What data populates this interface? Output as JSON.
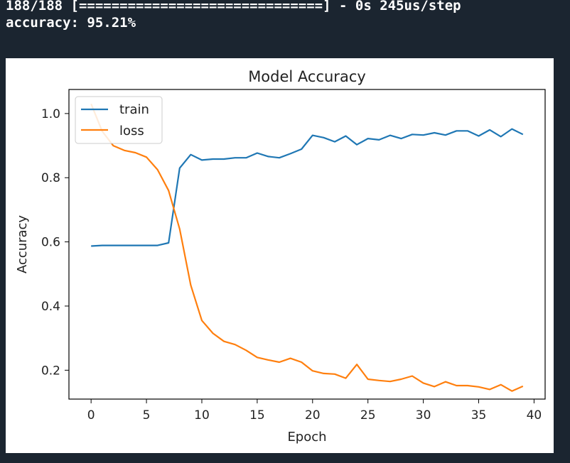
{
  "terminal": {
    "progress_line": "188/188 [==============================] - 0s 245us/step",
    "accuracy_line": "accuracy: 95.21%"
  },
  "chart_data": {
    "type": "line",
    "title": "Model Accuracy",
    "xlabel": "Epoch",
    "ylabel": "Accuracy",
    "xlim": [
      -2,
      41
    ],
    "ylim": [
      0.11,
      1.075
    ],
    "xticks": [
      0,
      5,
      10,
      15,
      20,
      25,
      30,
      35,
      40
    ],
    "yticks": [
      0.2,
      0.4,
      0.6,
      0.8,
      1.0
    ],
    "ytick_labels": [
      "0.2",
      "0.4",
      "0.6",
      "0.8",
      "1.0"
    ],
    "legend_position": "upper-left",
    "grid": false,
    "x": [
      0,
      1,
      2,
      3,
      4,
      5,
      6,
      7,
      8,
      9,
      10,
      11,
      12,
      13,
      14,
      15,
      16,
      17,
      18,
      19,
      20,
      21,
      22,
      23,
      24,
      25,
      26,
      27,
      28,
      29,
      30,
      31,
      32,
      33,
      34,
      35,
      36,
      37,
      38,
      39
    ],
    "series": [
      {
        "name": "train",
        "color": "#1f77b4",
        "values": [
          0.587,
          0.589,
          0.589,
          0.589,
          0.589,
          0.589,
          0.589,
          0.597,
          0.83,
          0.872,
          0.855,
          0.858,
          0.858,
          0.862,
          0.862,
          0.877,
          0.866,
          0.862,
          0.875,
          0.889,
          0.932,
          0.925,
          0.912,
          0.93,
          0.903,
          0.922,
          0.918,
          0.932,
          0.922,
          0.935,
          0.933,
          0.94,
          0.933,
          0.946,
          0.946,
          0.93,
          0.949,
          0.928,
          0.952,
          0.935
        ]
      },
      {
        "name": "loss",
        "color": "#ff7f0e",
        "values": [
          1.03,
          0.945,
          0.9,
          0.885,
          0.878,
          0.864,
          0.825,
          0.76,
          0.64,
          0.465,
          0.355,
          0.315,
          0.29,
          0.28,
          0.262,
          0.24,
          0.232,
          0.225,
          0.237,
          0.225,
          0.198,
          0.19,
          0.188,
          0.175,
          0.218,
          0.172,
          0.168,
          0.165,
          0.172,
          0.182,
          0.16,
          0.149,
          0.164,
          0.152,
          0.152,
          0.148,
          0.14,
          0.155,
          0.135,
          0.15
        ]
      }
    ]
  }
}
